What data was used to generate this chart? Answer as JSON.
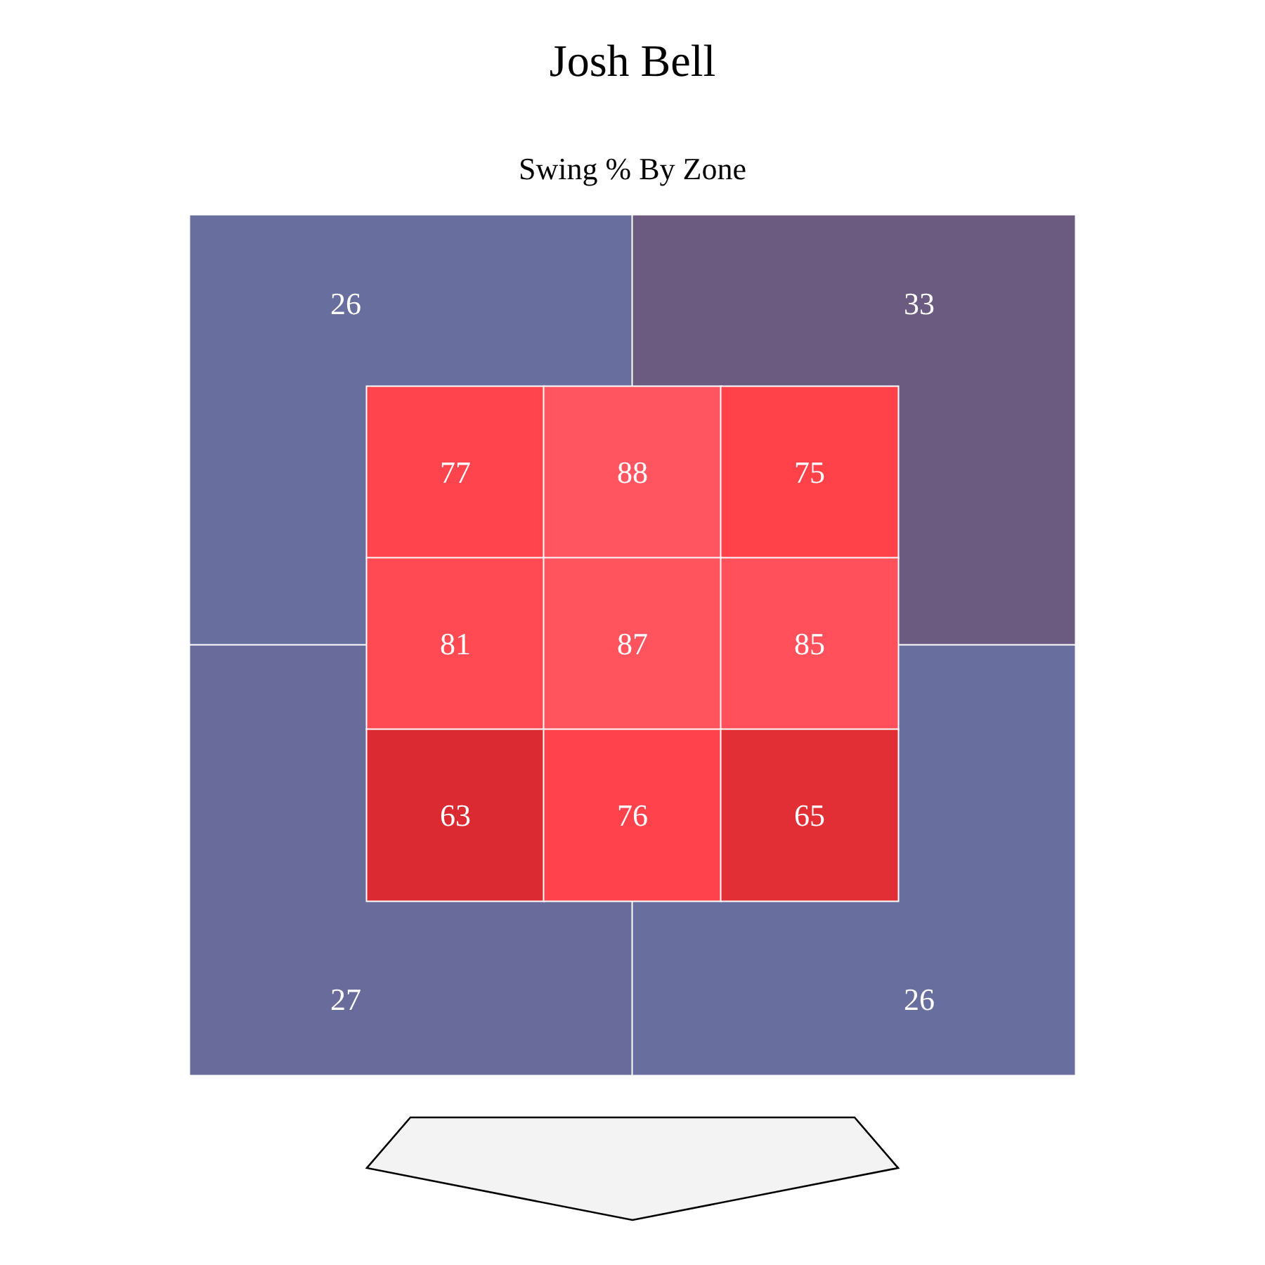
{
  "chart_data": [
    {
      "type": "heatmap",
      "title": "Josh Bell",
      "subtitle": "Swing % By Zone",
      "categories": [
        null,
        null
      ],
      "y_categories": [
        null,
        null
      ],
      "data_labels": true,
      "cells": [
        [
          26,
          33
        ],
        [
          27,
          26
        ]
      ]
    },
    {
      "type": "heatmap",
      "categories": [
        null,
        null,
        null
      ],
      "y_categories": [
        null,
        null,
        null
      ],
      "data_labels": true,
      "cells": [
        [
          77,
          88,
          75
        ],
        [
          81,
          87,
          85
        ],
        [
          63,
          76,
          65
        ]
      ]
    }
  ]
}
